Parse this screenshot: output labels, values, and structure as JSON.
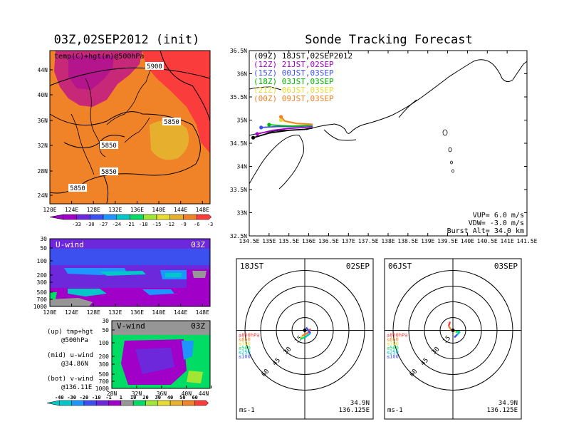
{
  "left_title": "03Z,02SEP2012 (init)",
  "right_title": "Sonde Tracking Forecast",
  "map500": {
    "label": "temp(C)+hgt(m)@500hPa",
    "lat_ticks": [
      "44N",
      "40N",
      "36N",
      "32N",
      "28N",
      "24N"
    ],
    "lon_ticks": [
      "120E",
      "124E",
      "128E",
      "132E",
      "136E",
      "140E",
      "144E",
      "148E"
    ],
    "contour_labels": [
      "5900",
      "5850",
      "5850",
      "5850",
      "5850"
    ],
    "colorbar_labels": [
      "-33",
      "-30",
      "-27",
      "-24",
      "-21",
      "-18",
      "-15",
      "-12",
      "-9",
      "-6",
      "-3"
    ],
    "colors": [
      "#a000c8",
      "#6e28dc",
      "#3c50f0",
      "#1e96ff",
      "#00c8c8",
      "#00dc64",
      "#a0e632",
      "#e6dc32",
      "#e6af2d",
      "#f08228",
      "#fa3c3c"
    ]
  },
  "uwind": {
    "label": "U-wind",
    "time": "03Z",
    "p_ticks": [
      "30",
      "50",
      "100",
      "200",
      "300",
      "500",
      "700",
      "1000"
    ],
    "lon_ticks": [
      "120E",
      "124E",
      "128E",
      "132E",
      "136E",
      "140E",
      "144E",
      "148E"
    ]
  },
  "vwind": {
    "label": "V-wind",
    "time": "03Z",
    "p_ticks": [
      "30",
      "50",
      "100",
      "200",
      "300",
      "500",
      "700",
      "1000"
    ],
    "lat_ticks": [
      "28N",
      "32N",
      "36N",
      "40N",
      "44N"
    ]
  },
  "notes": [
    {
      "a": "(up) tmp+hgt",
      "b": "@500hPa"
    },
    {
      "a": "(mid) u-wind",
      "b": "@34.86N"
    },
    {
      "a": "(bot) v-wind",
      "b": "@136.11E"
    }
  ],
  "wind_colorbar": {
    "labels": [
      "-40",
      "-30",
      "-20",
      "-10",
      "-1",
      "1",
      "10",
      "20",
      "30",
      "40",
      "50",
      "60"
    ],
    "colors": [
      "#00c8c8",
      "#1e96ff",
      "#3c50f0",
      "#6e28dc",
      "#a000c8",
      "#969696",
      "#00dc64",
      "#a0e632",
      "#e6dc32",
      "#e6af2d",
      "#f08228",
      "#fa3c3c"
    ]
  },
  "chart_data": [
    {
      "type": "line",
      "title": "Sonde Tracking Forecast",
      "x_ticks": [
        "134.5E",
        "135E",
        "135.5E",
        "136E",
        "136.5E",
        "137E",
        "137.5E",
        "138E",
        "138.5E",
        "139E",
        "139.5E",
        "140E",
        "140.5E",
        "141E",
        "141.5E"
      ],
      "y_ticks": [
        "36.5N",
        "36N",
        "35.5N",
        "35N",
        "34.5N",
        "34N",
        "33.5N",
        "33N",
        "32.5N"
      ],
      "xlim": [
        134.5,
        141.5
      ],
      "ylim": [
        32.5,
        36.5
      ],
      "series": [
        {
          "name": "(09Z) 18JST,02SEP2012",
          "color": "#000000",
          "x": [
            134.6,
            135.0,
            135.5,
            135.9,
            136.1
          ],
          "y": [
            34.62,
            34.72,
            34.78,
            34.8,
            34.83
          ]
        },
        {
          "name": "(12Z) 21JST,02SEP",
          "color": "#a000c8",
          "x": [
            134.7,
            135.1,
            135.5,
            135.9,
            136.1
          ],
          "y": [
            34.7,
            34.78,
            34.82,
            34.84,
            34.86
          ]
        },
        {
          "name": "(15Z) 00JST,03SEP",
          "color": "#3c50f0",
          "x": [
            134.8,
            135.2,
            135.6,
            135.9,
            136.1
          ],
          "y": [
            34.84,
            34.86,
            34.86,
            34.87,
            34.88
          ]
        },
        {
          "name": "(18Z) 03JST,03SEP",
          "color": "#00b400",
          "x": [
            135.0,
            135.3,
            135.6,
            135.9,
            136.1
          ],
          "y": [
            34.9,
            34.88,
            34.87,
            34.88,
            34.89
          ]
        },
        {
          "name": "(21Z) 06JST,03SEP",
          "color": "#e6dc32",
          "x": [
            135.3,
            135.5,
            135.7,
            135.9,
            136.1
          ],
          "y": [
            35.0,
            34.95,
            34.92,
            34.91,
            34.9
          ]
        },
        {
          "name": "(00Z) 09JST,03SEP",
          "color": "#f08228",
          "x": [
            135.3,
            135.4,
            135.7,
            135.9,
            136.1
          ],
          "y": [
            35.07,
            34.98,
            34.93,
            34.92,
            34.91
          ]
        }
      ],
      "annotations": [
        "VUP= 6.0 m/s",
        "VDW= -3.0 m/s",
        "Burst Alt= 34.0 km"
      ]
    },
    {
      "type": "scatter",
      "title_left": "18JST",
      "title_right": "02SEP",
      "ring_labels": [
        "15",
        "30",
        "45",
        "60"
      ],
      "level_legend": [
        "≥850hPa",
        "≤850",
        "≤700",
        "≤500",
        "≤250",
        "≤100"
      ],
      "level_colors": [
        "#fa3c3c",
        "#f08228",
        "#e6dc32",
        "#00dc64",
        "#00c8c8",
        "#3c50f0"
      ],
      "unit": "ms-1",
      "location": [
        "34.9N",
        "136.125E"
      ]
    },
    {
      "type": "scatter",
      "title_left": "06JST",
      "title_right": "03SEP",
      "ring_labels": [
        "15",
        "30",
        "45",
        "60"
      ],
      "level_legend": [
        "≥850hPa",
        "≤850",
        "≤700",
        "≤500",
        "≤250",
        "≤100"
      ],
      "level_colors": [
        "#fa3c3c",
        "#f08228",
        "#e6dc32",
        "#00dc64",
        "#00c8c8",
        "#3c50f0"
      ],
      "unit": "ms-1",
      "location": [
        "34.9N",
        "136.125E"
      ]
    }
  ]
}
